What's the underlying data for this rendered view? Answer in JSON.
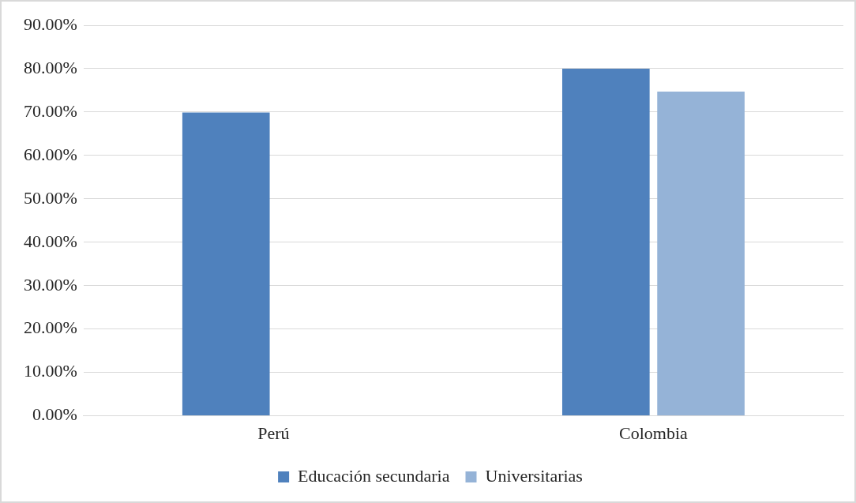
{
  "chart_data": {
    "type": "bar",
    "categories": [
      "Perú",
      "Colombia"
    ],
    "series": [
      {
        "name": "Educación secundaria",
        "color": "#4f81bd",
        "values": [
          69.9,
          80.0
        ]
      },
      {
        "name": "Universitarias",
        "color": "#95b3d7",
        "values": [
          null,
          74.7
        ]
      }
    ],
    "ylim": [
      0,
      90
    ],
    "yticks": [
      {
        "value": 0,
        "label": "0.00%"
      },
      {
        "value": 10,
        "label": "10.00%"
      },
      {
        "value": 20,
        "label": "20.00%"
      },
      {
        "value": 30,
        "label": "30.00%"
      },
      {
        "value": 40,
        "label": "40.00%"
      },
      {
        "value": 50,
        "label": "50.00%"
      },
      {
        "value": 60,
        "label": "60.00%"
      },
      {
        "value": 70,
        "label": "70.00%"
      },
      {
        "value": 80,
        "label": "80.00%"
      },
      {
        "value": 90,
        "label": "90.00%"
      }
    ],
    "grid": "y",
    "legend": "bottom"
  }
}
